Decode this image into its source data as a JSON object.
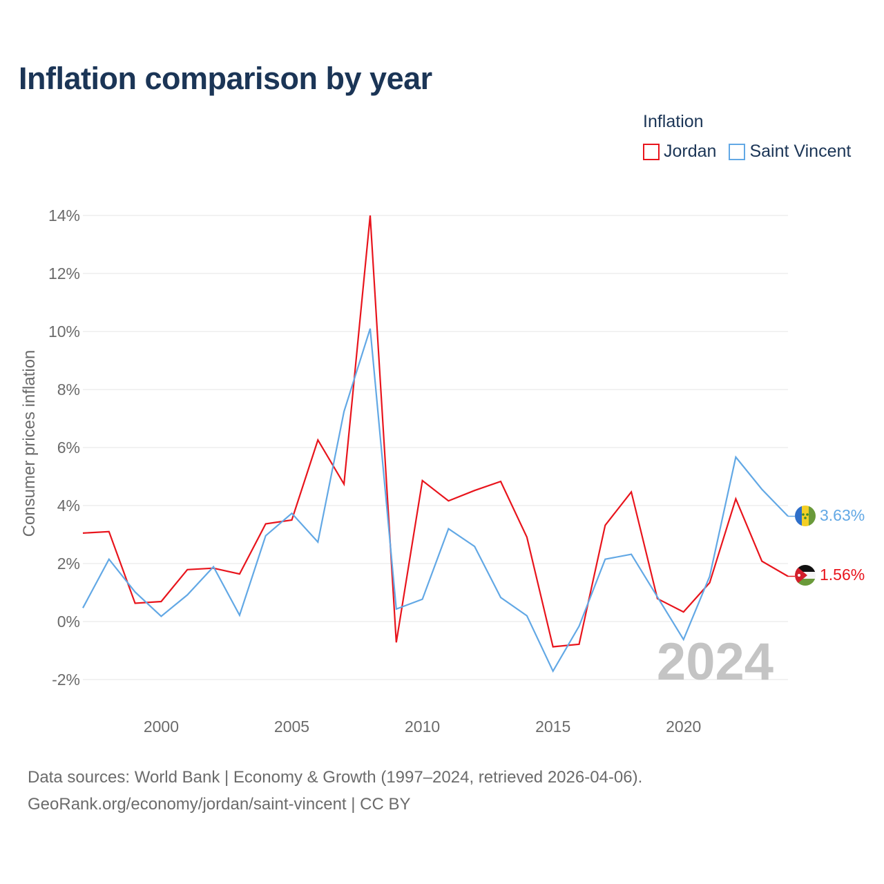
{
  "title": "Inflation comparison by year",
  "legend": {
    "title": "Inflation",
    "items": [
      {
        "label": "Jordan",
        "color": "#e8141c"
      },
      {
        "label": "Saint Vincent",
        "color": "#62a8e5"
      }
    ]
  },
  "footer": {
    "line1": "Data sources: World Bank | Economy & Growth (1997–2024, retrieved 2026-04-06).",
    "line2": "GeoRank.org/economy/jordan/saint-vincent | CC BY"
  },
  "chart_data": {
    "type": "line",
    "title": "Inflation comparison by year",
    "xlabel": "",
    "ylabel": "Consumer prices inflation",
    "year_watermark": "2024",
    "x": [
      1997,
      1998,
      1999,
      2000,
      2001,
      2002,
      2003,
      2004,
      2005,
      2006,
      2007,
      2008,
      2009,
      2010,
      2011,
      2012,
      2013,
      2014,
      2015,
      2016,
      2017,
      2018,
      2019,
      2020,
      2021,
      2022,
      2023,
      2024
    ],
    "xlim": [
      1997,
      2024
    ],
    "ylim": [
      -2,
      14
    ],
    "y_ticks": [
      -2,
      0,
      2,
      4,
      6,
      8,
      10,
      12,
      14
    ],
    "y_tick_labels": [
      "-2%",
      "0%",
      "2%",
      "4%",
      "6%",
      "8%",
      "10%",
      "12%",
      "14%"
    ],
    "x_ticks": [
      2000,
      2005,
      2010,
      2015,
      2020
    ],
    "x_tick_labels": [
      "2000",
      "2005",
      "2010",
      "2015",
      "2020"
    ],
    "grid": true,
    "legend_position": "top-right",
    "series": [
      {
        "name": "Jordan",
        "color": "#e8141c",
        "end_label": "1.56%",
        "values": [
          3.05,
          3.1,
          0.63,
          0.69,
          1.79,
          1.84,
          1.64,
          3.37,
          3.5,
          6.26,
          4.74,
          14.0,
          -0.72,
          4.86,
          4.16,
          4.52,
          4.83,
          2.91,
          -0.87,
          -0.78,
          3.32,
          4.47,
          0.79,
          0.33,
          1.34,
          4.23,
          2.08,
          1.56
        ]
      },
      {
        "name": "Saint Vincent",
        "color": "#62a8e5",
        "end_label": "3.63%",
        "values": [
          0.47,
          2.15,
          1.02,
          0.18,
          0.92,
          1.89,
          0.22,
          2.96,
          3.73,
          2.74,
          7.24,
          10.1,
          0.43,
          0.77,
          3.2,
          2.59,
          0.83,
          0.2,
          -1.71,
          -0.16,
          2.15,
          2.32,
          0.85,
          -0.62,
          1.56,
          5.67,
          4.56,
          3.63
        ]
      }
    ]
  }
}
